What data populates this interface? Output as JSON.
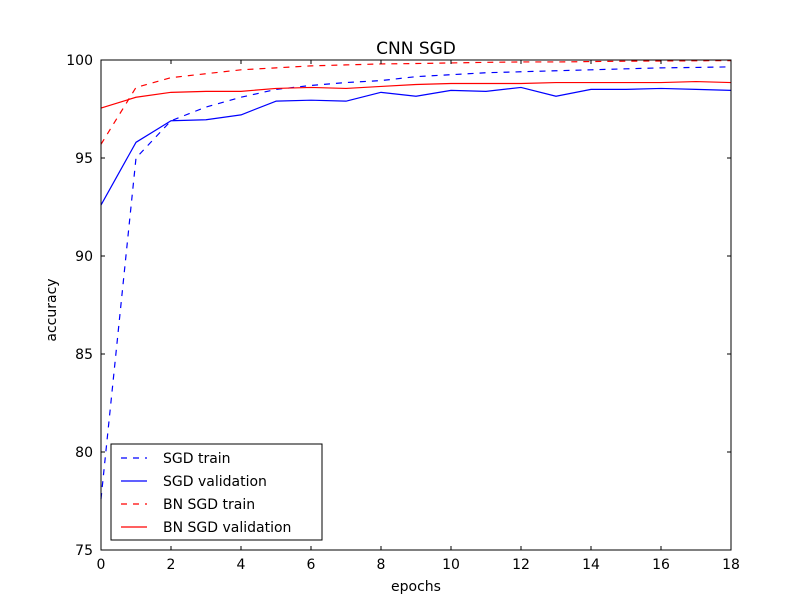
{
  "chart_data": {
    "type": "line",
    "title": "CNN SGD",
    "xlabel": "epochs",
    "ylabel": "accuracy",
    "xlim": [
      0,
      18
    ],
    "ylim": [
      75,
      100
    ],
    "xticks": [
      0,
      2,
      4,
      6,
      8,
      10,
      12,
      14,
      16,
      18
    ],
    "yticks": [
      75,
      80,
      85,
      90,
      95,
      100
    ],
    "grid": false,
    "legend_position": "lower-left",
    "x": [
      0,
      1,
      2,
      3,
      4,
      5,
      6,
      7,
      8,
      9,
      10,
      11,
      12,
      13,
      14,
      15,
      16,
      17,
      18
    ],
    "series": [
      {
        "name": "SGD train",
        "color": "#0000ff",
        "style": "dashed",
        "values": [
          77.6,
          95.0,
          96.9,
          97.6,
          98.1,
          98.5,
          98.7,
          98.85,
          98.95,
          99.15,
          99.25,
          99.35,
          99.4,
          99.45,
          99.5,
          99.55,
          99.6,
          99.62,
          99.65
        ]
      },
      {
        "name": "SGD validation",
        "color": "#0000ff",
        "style": "solid",
        "values": [
          92.6,
          95.8,
          96.9,
          96.95,
          97.2,
          97.9,
          97.95,
          97.9,
          98.35,
          98.15,
          98.45,
          98.4,
          98.6,
          98.15,
          98.5,
          98.5,
          98.55,
          98.5,
          98.45
        ]
      },
      {
        "name": "BN SGD train",
        "color": "#ff0000",
        "style": "dashed",
        "values": [
          95.7,
          98.6,
          99.1,
          99.3,
          99.5,
          99.6,
          99.7,
          99.75,
          99.8,
          99.82,
          99.85,
          99.88,
          99.9,
          99.9,
          99.92,
          99.94,
          99.95,
          99.96,
          99.97
        ]
      },
      {
        "name": "BN SGD validation",
        "color": "#ff0000",
        "style": "solid",
        "values": [
          97.55,
          98.1,
          98.35,
          98.4,
          98.4,
          98.55,
          98.6,
          98.55,
          98.65,
          98.75,
          98.8,
          98.8,
          98.8,
          98.85,
          98.85,
          98.85,
          98.85,
          98.9,
          98.85
        ]
      }
    ]
  }
}
